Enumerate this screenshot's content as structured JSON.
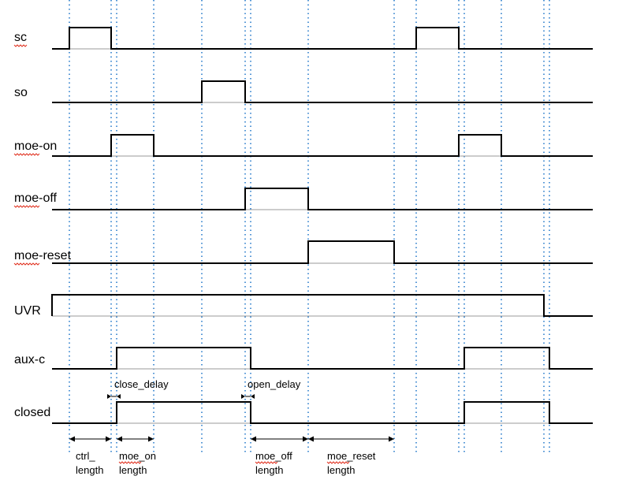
{
  "signals": [
    {
      "id": "sc",
      "label": "sc",
      "spellcheck": true
    },
    {
      "id": "so",
      "label": "so",
      "spellcheck": false
    },
    {
      "id": "moe-on",
      "label": "moe-on",
      "spellcheck": true
    },
    {
      "id": "moe-off",
      "label": "moe-off",
      "spellcheck": true
    },
    {
      "id": "moe-reset",
      "label": "moe-reset",
      "spellcheck": true
    },
    {
      "id": "UVR",
      "label": "UVR",
      "spellcheck": false
    },
    {
      "id": "aux-c",
      "label": "aux-c",
      "spellcheck": false
    },
    {
      "id": "closed",
      "label": "closed",
      "spellcheck": false
    }
  ],
  "delay_labels": {
    "close_delay": "close_delay",
    "open_delay": "open_delay"
  },
  "timing_labels": [
    {
      "line1": "ctrl_",
      "line2": "length"
    },
    {
      "line1": "moe_on",
      "line2": "length"
    },
    {
      "line1": "moe_off",
      "line2": "length"
    },
    {
      "line1": "moe_reset",
      "line2": "length"
    }
  ],
  "colors": {
    "waveform": "#000000",
    "time_markers": "#1a73c8",
    "spellcheck_underline": "#e0301e"
  }
}
